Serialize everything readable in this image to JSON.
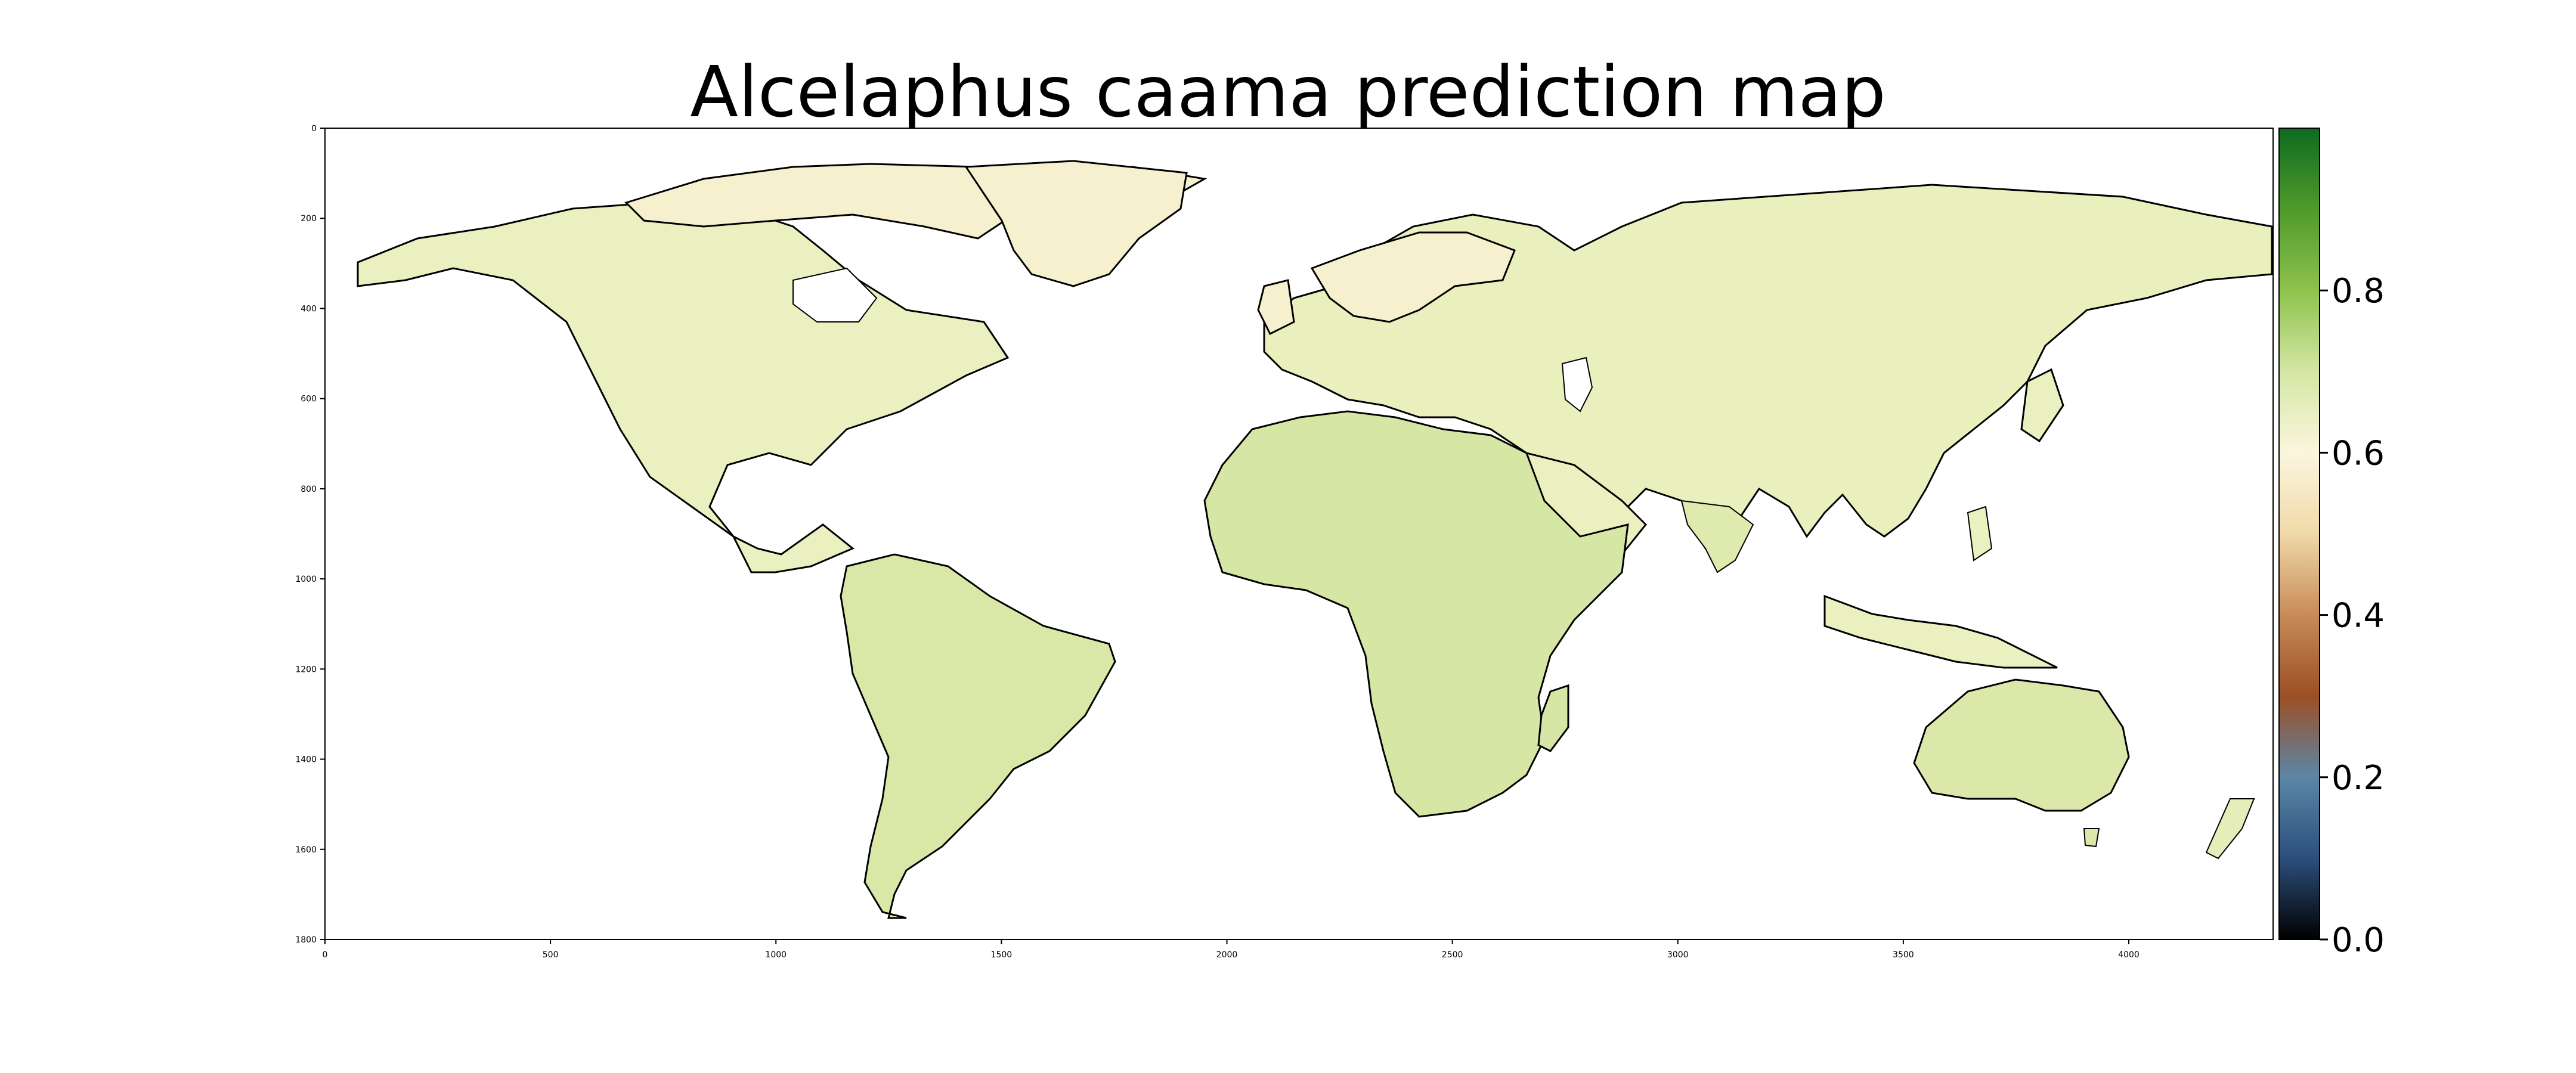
{
  "title": "Alcelaphus caama prediction map",
  "chart_data": {
    "type": "heatmap",
    "title": "Alcelaphus caama prediction map",
    "xlabel": "",
    "ylabel": "",
    "xlim": [
      0,
      4320
    ],
    "ylim": [
      1800,
      0
    ],
    "x_ticks": [
      0,
      500,
      1000,
      1500,
      2000,
      2500,
      3000,
      3500,
      4000
    ],
    "y_ticks": [
      0,
      200,
      400,
      600,
      800,
      1000,
      1200,
      1400,
      1600,
      1800
    ],
    "colorbar": {
      "range": [
        0.0,
        1.0
      ],
      "ticks": [
        "0.0",
        "0.2",
        "0.4",
        "0.6",
        "0.8"
      ],
      "colormap": [
        "#000000",
        "#2b4f7c",
        "#5b86a6",
        "#9c4f25",
        "#c78b58",
        "#f0d9a8",
        "#fbf6de",
        "#d4e7a4",
        "#8ec24d",
        "#4f9a2b",
        "#0e6b20"
      ]
    },
    "colors": {
      "land_low": "#f6f0cf",
      "land_mid": "#e5eeb9",
      "land_high": "#cfe19a",
      "coast": "#000000",
      "ocean": "#ffffff"
    }
  }
}
